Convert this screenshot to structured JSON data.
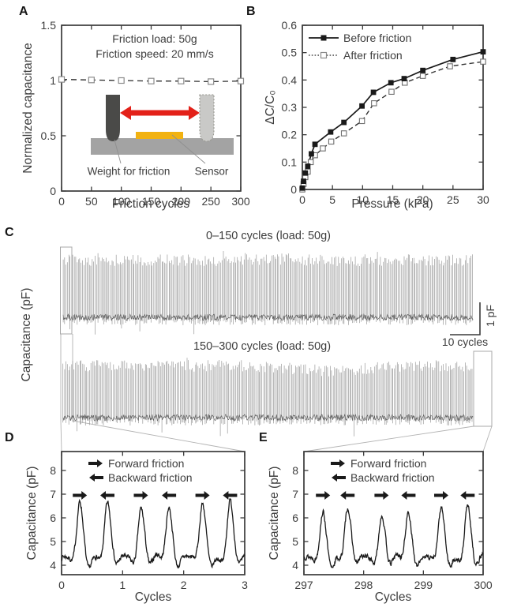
{
  "panel_labels": {
    "a": "A",
    "b": "B",
    "c": "C",
    "d": "D",
    "e": "E"
  },
  "colors": {
    "axis": "#3a3a3a",
    "text": "#3d3d3d",
    "curve": "#1a1a1a",
    "trace_light": "#9a9a9a",
    "trace_dark": "#585858",
    "marker_open": "#8a8a8a",
    "red_arrow": "#e32119",
    "sensor_yellow": "#f2b211",
    "weight_dark": "#4a4a48",
    "weight_light": "#c9c9c7",
    "platform_gray": "#a3a3a3",
    "connector": "#b3b3b3"
  },
  "chart_data": [
    {
      "id": "A",
      "type": "line",
      "xlabel": "Friction cycles",
      "ylabel": "Normalized capacitance",
      "xlim": [
        0,
        300
      ],
      "ylim": [
        0,
        1.5
      ],
      "xticks": [
        0,
        50,
        100,
        150,
        200,
        250,
        300
      ],
      "yticks": [
        0,
        0.5,
        1,
        1.5
      ],
      "annotation": {
        "line1": "Friction load: 50g",
        "line2": "Friction speed: 20 mm/s"
      },
      "inset": {
        "weight_label": "Weight for friction",
        "sensor_label": "Sensor"
      },
      "series": [
        {
          "name": "normalized capacitance",
          "style": "dashed-open-square",
          "x": [
            0,
            50,
            100,
            150,
            200,
            250,
            300
          ],
          "y": [
            1.01,
            1.005,
            1.0,
            0.995,
            0.995,
            0.99,
            0.995
          ]
        }
      ]
    },
    {
      "id": "B",
      "type": "line",
      "xlabel": "Pressure (kPa)",
      "ylabel": "ΔC/C₀",
      "xlim": [
        0,
        30
      ],
      "ylim": [
        0,
        0.6
      ],
      "xticks": [
        0,
        5,
        10,
        15,
        20,
        25,
        30
      ],
      "yticks": [
        0,
        0.1,
        0.2,
        0.3,
        0.4,
        0.5,
        0.6
      ],
      "legend_position": "top-left",
      "series": [
        {
          "name": "Before friction",
          "style": "solid-filled-square",
          "x": [
            0,
            0.2,
            0.5,
            0.9,
            1.5,
            2.1,
            4.7,
            6.9,
            9.9,
            11.8,
            14.7,
            16.9,
            20,
            25,
            30
          ],
          "y": [
            0.005,
            0.03,
            0.06,
            0.085,
            0.13,
            0.165,
            0.21,
            0.245,
            0.305,
            0.355,
            0.39,
            0.405,
            0.435,
            0.475,
            0.503
          ]
        },
        {
          "name": "After friction",
          "style": "dotted-open-square",
          "x": [
            0,
            0.2,
            0.5,
            0.9,
            1.4,
            2.1,
            3.4,
            4.8,
            6.9,
            9.9,
            11.9,
            14.8,
            17,
            20,
            24.5,
            30
          ],
          "y": [
            0.0,
            0.02,
            0.045,
            0.065,
            0.1,
            0.125,
            0.15,
            0.175,
            0.205,
            0.25,
            0.315,
            0.357,
            0.39,
            0.415,
            0.45,
            0.467
          ]
        }
      ]
    },
    {
      "id": "C",
      "type": "line",
      "ylabel": "Capacitance (pF)",
      "traces": [
        {
          "title": "0–150 cycles (load: 50g)",
          "cycle_range": [
            0,
            150
          ]
        },
        {
          "title": "150–300 cycles (load: 50g)",
          "cycle_range": [
            150,
            300
          ]
        }
      ],
      "scalebar": {
        "vertical": "1 pF",
        "horizontal": "10 cycles"
      },
      "signal": {
        "cycles_per_trace": 150,
        "peaks_per_cycle": 2,
        "baseline_pF_approx": 4.4,
        "peak_pF_approx": 6.5
      }
    },
    {
      "id": "D",
      "type": "line",
      "xlabel": "Cycles",
      "ylabel": "Capacitance (pF)",
      "xlim": [
        0,
        3
      ],
      "ylim": [
        3.6,
        8.8
      ],
      "xticks": [
        0,
        1,
        2,
        3
      ],
      "yticks": [
        4,
        5,
        6,
        7,
        8
      ],
      "legend": [
        {
          "icon": "arrow-right",
          "label": "Forward friction"
        },
        {
          "icon": "arrow-left",
          "label": "Backward friction"
        }
      ],
      "baseline": 4.3,
      "arrow_row_y": 6.95,
      "peaks": [
        {
          "x": 0.3,
          "h": 6.6,
          "dir": "forward"
        },
        {
          "x": 0.75,
          "h": 6.6,
          "dir": "backward"
        },
        {
          "x": 1.3,
          "h": 6.45,
          "dir": "forward"
        },
        {
          "x": 1.76,
          "h": 6.55,
          "dir": "backward"
        },
        {
          "x": 2.31,
          "h": 6.6,
          "dir": "forward"
        },
        {
          "x": 2.76,
          "h": 6.65,
          "dir": "backward"
        }
      ]
    },
    {
      "id": "E",
      "type": "line",
      "xlabel": "Cycles",
      "ylabel": "Capacitance (pF)",
      "xlim": [
        297,
        300
      ],
      "ylim": [
        3.6,
        8.8
      ],
      "xticks": [
        297,
        298,
        299,
        300
      ],
      "yticks": [
        4,
        5,
        6,
        7,
        8
      ],
      "legend": [
        {
          "icon": "arrow-right",
          "label": "Forward friction"
        },
        {
          "icon": "arrow-left",
          "label": "Backward friction"
        }
      ],
      "baseline": 4.3,
      "arrow_row_y": 6.95,
      "peaks": [
        {
          "x": 297.32,
          "h": 6.2,
          "dir": "forward"
        },
        {
          "x": 297.73,
          "h": 6.4,
          "dir": "backward"
        },
        {
          "x": 298.3,
          "h": 6.15,
          "dir": "forward"
        },
        {
          "x": 298.75,
          "h": 6.3,
          "dir": "backward"
        },
        {
          "x": 299.3,
          "h": 6.4,
          "dir": "forward"
        },
        {
          "x": 299.74,
          "h": 6.45,
          "dir": "backward"
        }
      ]
    }
  ]
}
